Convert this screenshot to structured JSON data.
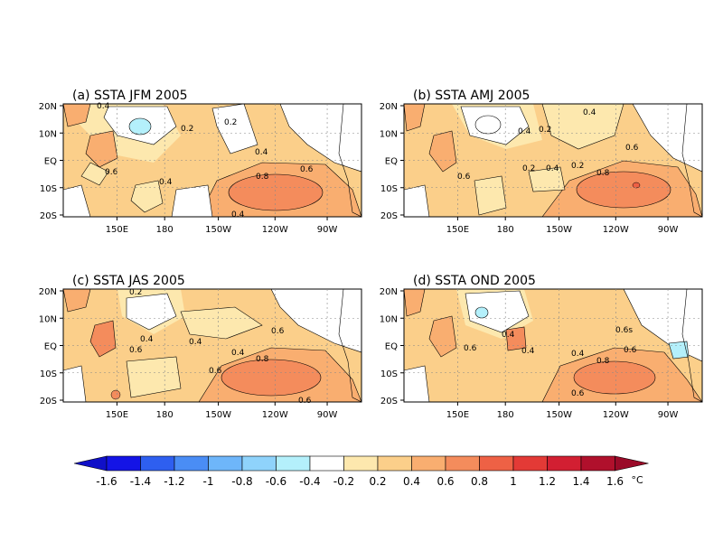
{
  "panels": [
    {
      "title": "(a) SSTA JFM 2005",
      "contour_labels": [
        "0.4",
        "0.2",
        "0.2",
        "0.4",
        "0.6",
        "0.4",
        "0.8",
        "0.6",
        "0.4"
      ]
    },
    {
      "title": "(b) SSTA AMJ 2005",
      "contour_labels": [
        "0.4",
        "0.4",
        "0.2",
        "0.6",
        "0.6",
        "0.2",
        "0.4",
        "0.2",
        "0.8"
      ]
    },
    {
      "title": "(c) SSTA JAS 2005",
      "contour_labels": [
        "0.2",
        "0.4",
        "0.6",
        "0.4",
        "0.6",
        "0.4",
        "0.6",
        "0.8",
        "0.6"
      ]
    },
    {
      "title": "(d) SSTA OND 2005",
      "contour_labels": [
        "0.4",
        "0.6",
        "0.4",
        "0.4",
        "0.6s",
        "0.6",
        "0.8",
        "0.6"
      ]
    }
  ],
  "lat_ticks": [
    "20N",
    "10N",
    "EQ",
    "10S",
    "20S"
  ],
  "lon_ticks": [
    "150E",
    "180",
    "150W",
    "120W",
    "90W"
  ],
  "colorbar": {
    "labels": [
      "-1.6",
      "-1.4",
      "-1.2",
      "-1",
      "-0.8",
      "-0.6",
      "-0.4",
      "-0.2",
      "0.2",
      "0.4",
      "0.6",
      "0.8",
      "1",
      "1.2",
      "1.4",
      "1.6"
    ],
    "unit": "°C",
    "colors": [
      "#1414e6",
      "#2e5ff0",
      "#4a8df5",
      "#6eb6fa",
      "#8fd3fb",
      "#b4f0fb",
      "#ffffff",
      "#fde8ae",
      "#fbcf8a",
      "#f9ae70",
      "#f48c5c",
      "#ee6145",
      "#e33a36",
      "#d21f32",
      "#b0102c"
    ],
    "low_color": "#1010c8",
    "high_color": "#9a0a28"
  }
}
